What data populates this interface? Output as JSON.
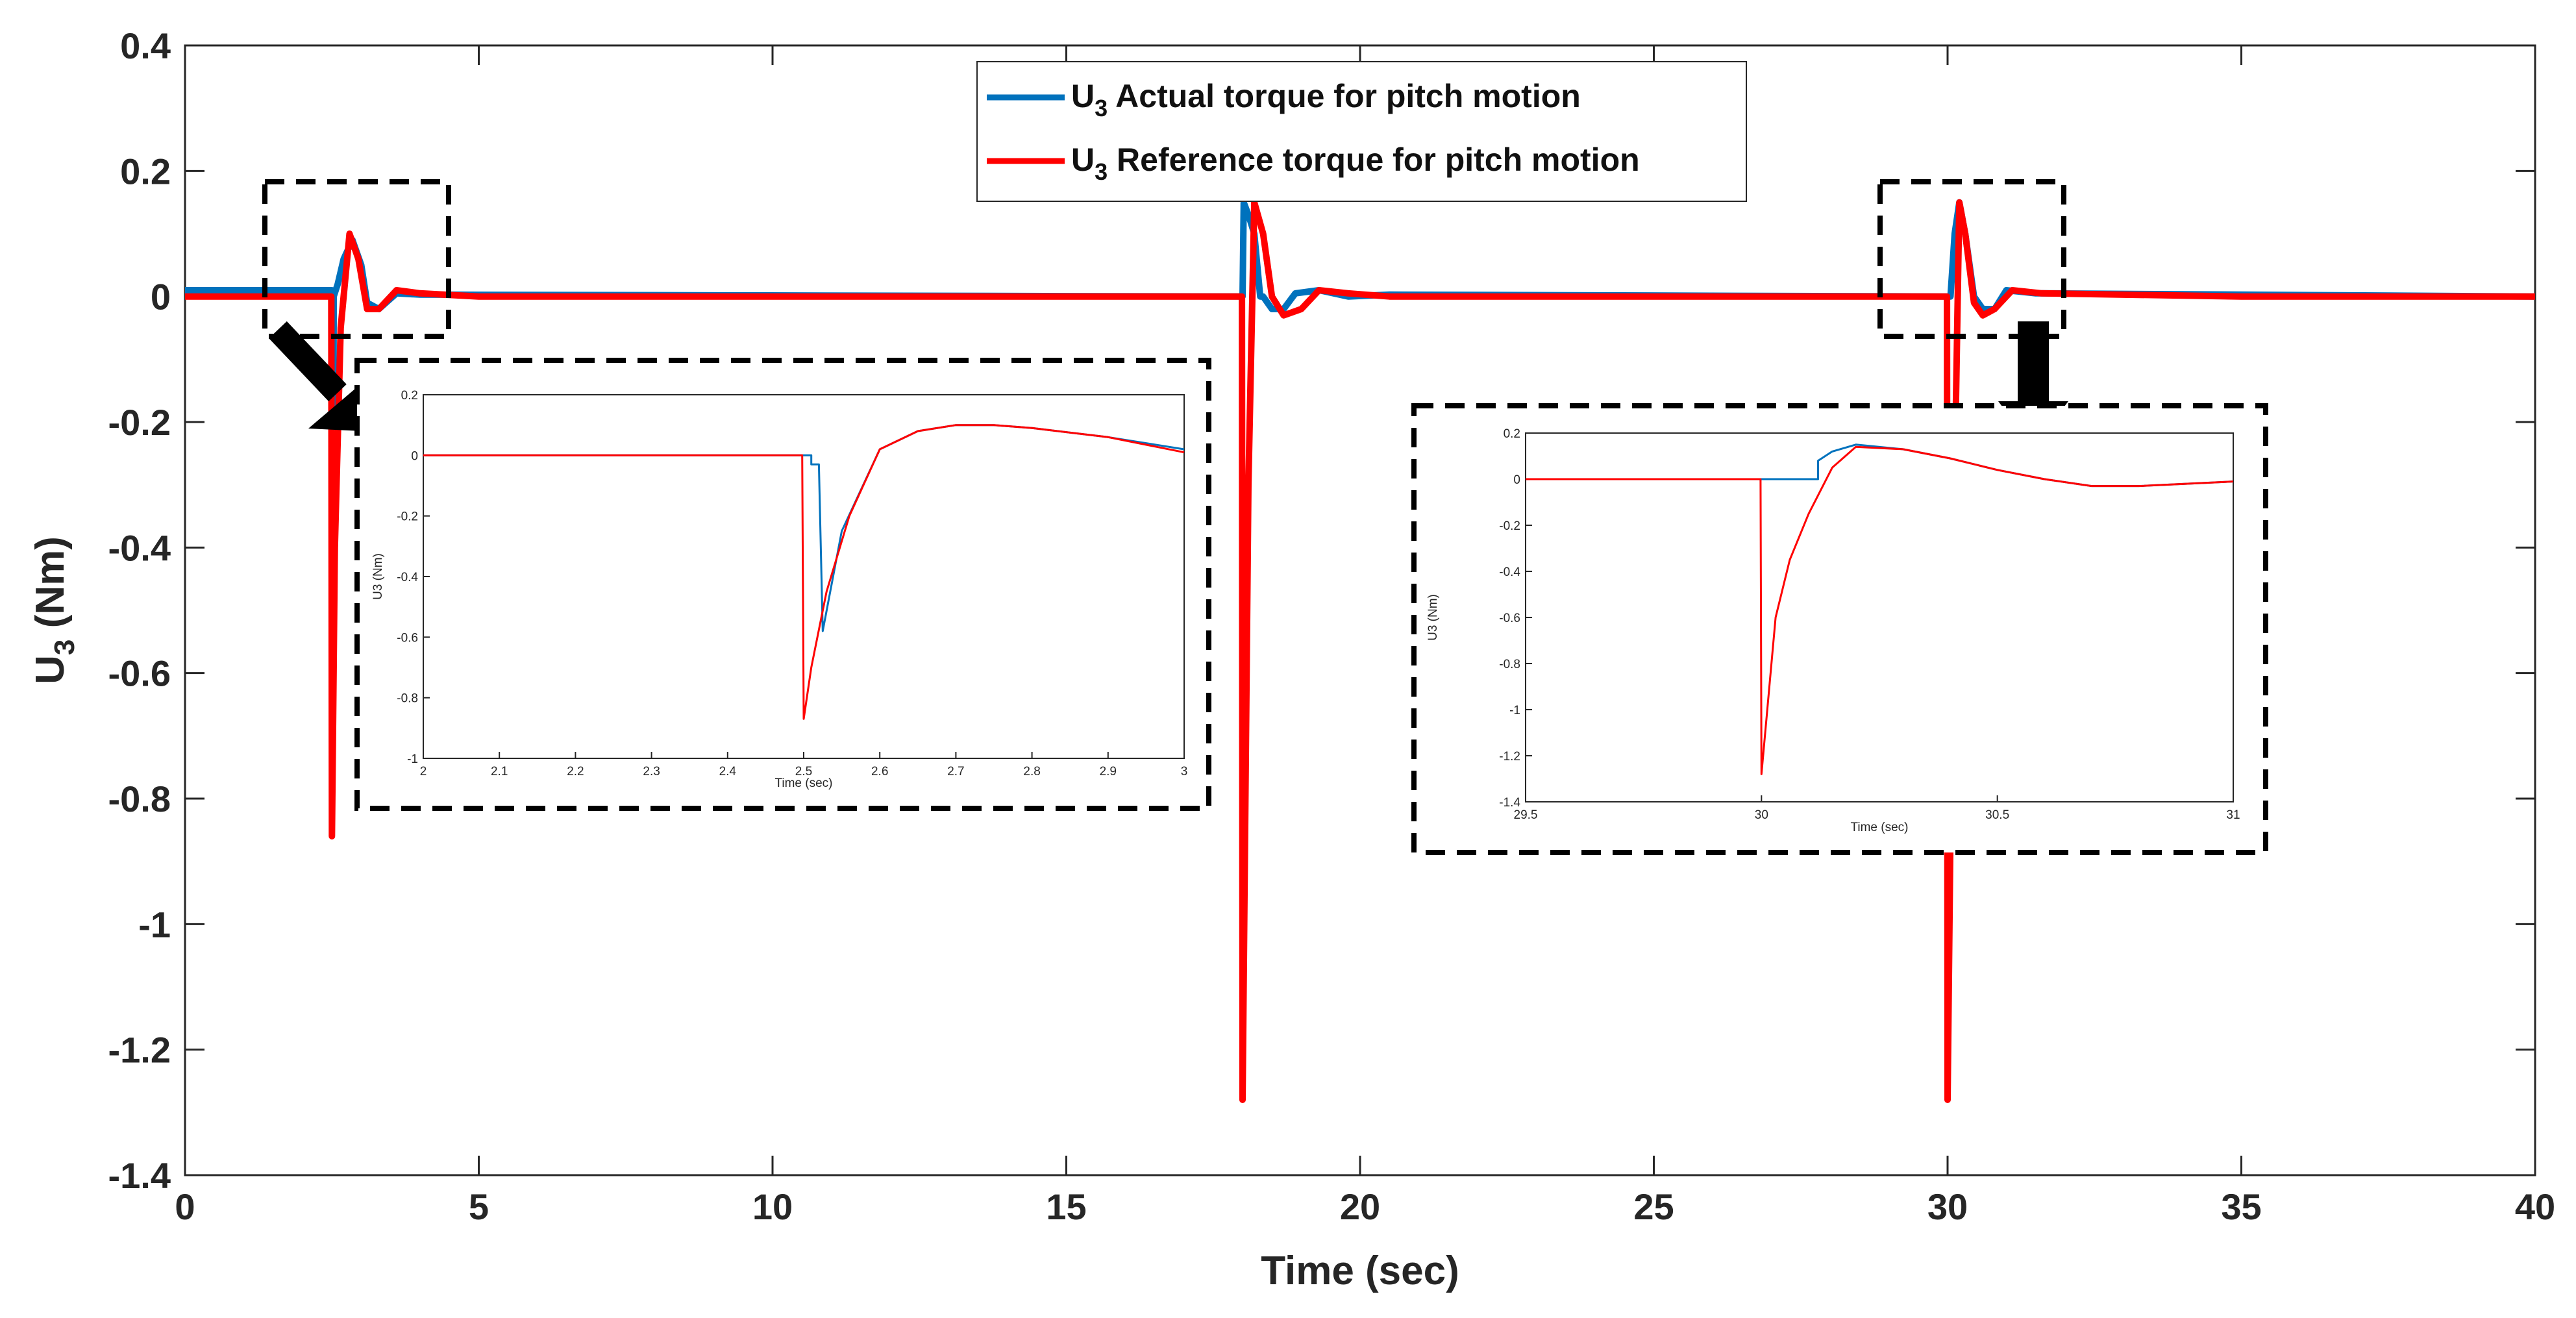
{
  "chart_data": {
    "type": "line",
    "title": "",
    "xlabel": "Time (sec)",
    "ylabel_main": "U",
    "ylabel_sub": "3",
    "ylabel_unit": " (Nm)",
    "xlim": [
      0,
      40
    ],
    "ylim": [
      -1.4,
      0.4
    ],
    "xticks": [
      0,
      5,
      10,
      15,
      20,
      25,
      30,
      35,
      40
    ],
    "yticks": [
      0.4,
      0.2,
      0,
      -0.2,
      -0.4,
      -0.6,
      -0.8,
      -1,
      -1.2,
      -1.4
    ],
    "xtick_labels": [
      "0",
      "5",
      "10",
      "15",
      "20",
      "25",
      "30",
      "35",
      "40"
    ],
    "ytick_labels": [
      "0.4",
      "0.2",
      "0",
      "-0.2",
      "-0.4",
      "-0.6",
      "-0.8",
      "-1",
      "-1.2",
      "-1.4"
    ],
    "legend": {
      "position": "top-center",
      "entries": [
        {
          "prefix": "U",
          "sub": "3",
          "text": " Actual torque for pitch motion",
          "color": "#0072BD"
        },
        {
          "prefix": "U",
          "sub": "3",
          "text": " Reference torque for pitch motion",
          "color": "#FF0000"
        }
      ]
    },
    "series": [
      {
        "name": "U3 Actual torque for pitch motion",
        "color": "#0072BD",
        "x": [
          0,
          2.5,
          2.52,
          2.53,
          2.6,
          2.7,
          2.85,
          3.0,
          3.1,
          3.3,
          3.6,
          4.0,
          18.0,
          18.02,
          18.1,
          18.2,
          18.3,
          18.35,
          18.5,
          18.7,
          18.9,
          19.3,
          19.8,
          20.5,
          30.0,
          30.05,
          30.12,
          30.2,
          30.3,
          30.45,
          30.6,
          30.8,
          31.0,
          31.5,
          40
        ],
        "values": [
          0.01,
          0.01,
          -0.5,
          0.0,
          0.02,
          0.06,
          0.09,
          0.05,
          -0.01,
          -0.02,
          0.005,
          0.003,
          0.0,
          0.15,
          0.13,
          0.1,
          0.0,
          0.0,
          -0.02,
          -0.02,
          0.005,
          0.01,
          0.0,
          0.003,
          0.0,
          0.0,
          0.1,
          0.15,
          0.1,
          0.0,
          -0.02,
          -0.02,
          0.01,
          0.005,
          0.0
        ]
      },
      {
        "name": "U3 Reference torque for pitch motion",
        "color": "#FF0000",
        "x": [
          0,
          2.49,
          2.5,
          2.55,
          2.65,
          2.8,
          2.95,
          3.1,
          3.3,
          3.6,
          4.0,
          5.0,
          17.99,
          18.0,
          18.1,
          18.2,
          18.35,
          18.5,
          18.7,
          19.0,
          19.3,
          19.8,
          20.5,
          29.99,
          30.0,
          30.1,
          30.2,
          30.3,
          30.45,
          30.6,
          30.8,
          31.1,
          31.6,
          35.0,
          40
        ],
        "values": [
          0.0,
          0.0,
          -0.86,
          -0.4,
          -0.05,
          0.1,
          0.06,
          -0.02,
          -0.02,
          0.01,
          0.005,
          0.0,
          0.0,
          -1.28,
          -0.3,
          0.15,
          0.1,
          0.0,
          -0.03,
          -0.02,
          0.01,
          0.005,
          0.0,
          0.0,
          -1.28,
          -0.4,
          0.15,
          0.1,
          -0.01,
          -0.03,
          -0.02,
          0.01,
          0.005,
          0.0,
          0.0
        ]
      }
    ],
    "insets": [
      {
        "name": "inset-left",
        "xlim": [
          2,
          3
        ],
        "ylim": [
          -1,
          0.2
        ],
        "xticks": [
          2,
          2.1,
          2.2,
          2.3,
          2.4,
          2.5,
          2.6,
          2.7,
          2.8,
          2.9,
          3
        ],
        "yticks": [
          0.2,
          0,
          -0.2,
          -0.4,
          -0.6,
          -0.8,
          -1
        ],
        "xtick_labels": [
          "2",
          "2.1",
          "2.2",
          "2.3",
          "2.4",
          "2.5",
          "2.6",
          "2.7",
          "2.8",
          "2.9",
          "3"
        ],
        "ytick_labels": [
          "0.2",
          "0",
          "-0.2",
          "-0.4",
          "-0.6",
          "-0.8",
          "-1"
        ],
        "xlabel": "Time (sec)",
        "ylabel": "U3 (Nm)",
        "series": [
          {
            "name": "actual",
            "color": "#0072BD",
            "x": [
              2.0,
              2.51,
              2.51,
              2.52,
              2.525,
              2.55,
              2.6,
              2.65,
              2.7,
              2.75,
              2.8,
              2.9,
              3.0
            ],
            "values": [
              0.0,
              0.0,
              -0.03,
              -0.03,
              -0.58,
              -0.25,
              0.02,
              0.08,
              0.1,
              0.1,
              0.09,
              0.06,
              0.02
            ]
          },
          {
            "name": "reference",
            "color": "#FF0000",
            "x": [
              2.0,
              2.498,
              2.5,
              2.51,
              2.53,
              2.56,
              2.6,
              2.65,
              2.7,
              2.75,
              2.8,
              2.9,
              3.0
            ],
            "values": [
              0.0,
              0.0,
              -0.87,
              -0.7,
              -0.45,
              -0.2,
              0.02,
              0.08,
              0.1,
              0.1,
              0.09,
              0.06,
              0.01
            ]
          }
        ]
      },
      {
        "name": "inset-right",
        "xlim": [
          29.5,
          31
        ],
        "ylim": [
          -1.4,
          0.2
        ],
        "xticks": [
          29.5,
          30,
          30.5,
          31
        ],
        "yticks": [
          0.2,
          0,
          -0.2,
          -0.4,
          -0.6,
          -0.8,
          -1,
          -1.2,
          -1.4
        ],
        "xtick_labels": [
          "29.5",
          "30",
          "30.5",
          "31"
        ],
        "ytick_labels": [
          "0.2",
          "0",
          "-0.2",
          "-0.4",
          "-0.6",
          "-0.8",
          "-1",
          "-1.2",
          "-1.4"
        ],
        "xlabel": "Time (sec)",
        "ylabel": "U3 (Nm)",
        "series": [
          {
            "name": "actual",
            "color": "#0072BD",
            "x": [
              29.5,
              30.0,
              30.12,
              30.12,
              30.15,
              30.2,
              30.3,
              30.4,
              30.5,
              30.6,
              30.7,
              30.8,
              30.9,
              31.0
            ],
            "values": [
              0.0,
              0.0,
              0.0,
              0.08,
              0.12,
              0.15,
              0.13,
              0.09,
              0.04,
              0.0,
              -0.03,
              -0.03,
              -0.02,
              -0.01
            ]
          },
          {
            "name": "reference",
            "color": "#FF0000",
            "x": [
              29.5,
              29.998,
              30.0,
              30.03,
              30.06,
              30.1,
              30.15,
              30.2,
              30.3,
              30.4,
              30.5,
              30.6,
              30.7,
              30.8,
              30.9,
              31.0
            ],
            "values": [
              0.0,
              0.0,
              -1.28,
              -0.6,
              -0.35,
              -0.15,
              0.05,
              0.14,
              0.13,
              0.09,
              0.04,
              0.0,
              -0.03,
              -0.03,
              -0.02,
              -0.01
            ]
          }
        ]
      }
    ]
  }
}
